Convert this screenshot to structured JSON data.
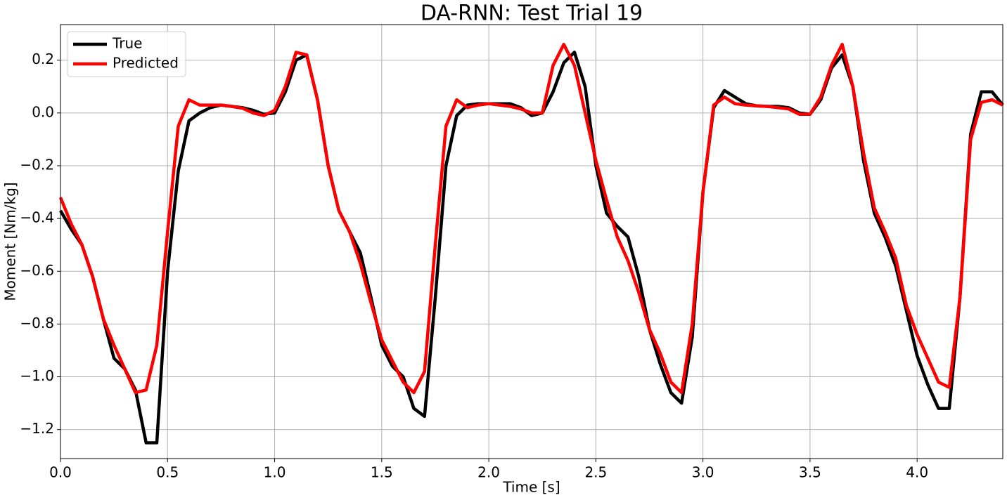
{
  "chart_data": {
    "type": "line",
    "title": "DA-RNN: Test Trial 19",
    "xlabel": "Time [s]",
    "ylabel": "Moment [Nm/kg]",
    "x": [
      0.0,
      0.05,
      0.1,
      0.15,
      0.2,
      0.25,
      0.3,
      0.35,
      0.4,
      0.45,
      0.5,
      0.55,
      0.6,
      0.65,
      0.7,
      0.75,
      0.8,
      0.85,
      0.9,
      0.95,
      1.0,
      1.05,
      1.1,
      1.15,
      1.2,
      1.25,
      1.3,
      1.35,
      1.4,
      1.45,
      1.5,
      1.55,
      1.6,
      1.65,
      1.7,
      1.75,
      1.8,
      1.85,
      1.9,
      1.95,
      2.0,
      2.05,
      2.1,
      2.15,
      2.2,
      2.25,
      2.3,
      2.35,
      2.4,
      2.45,
      2.5,
      2.55,
      2.6,
      2.65,
      2.7,
      2.75,
      2.8,
      2.85,
      2.9,
      2.95,
      3.0,
      3.05,
      3.1,
      3.15,
      3.2,
      3.25,
      3.3,
      3.35,
      3.4,
      3.45,
      3.5,
      3.55,
      3.6,
      3.65,
      3.7,
      3.75,
      3.8,
      3.85,
      3.9,
      3.95,
      4.0,
      4.05,
      4.1,
      4.15,
      4.2,
      4.25,
      4.3,
      4.35,
      4.4
    ],
    "series": [
      {
        "name": "True",
        "color": "#000000",
        "values": [
          -0.37,
          -0.44,
          -0.5,
          -0.62,
          -0.78,
          -0.93,
          -0.97,
          -1.05,
          -1.25,
          -1.25,
          -0.6,
          -0.22,
          -0.03,
          0.0,
          0.02,
          0.03,
          0.025,
          0.02,
          0.01,
          -0.005,
          0.0,
          0.08,
          0.2,
          0.22,
          0.05,
          -0.2,
          -0.37,
          -0.45,
          -0.53,
          -0.7,
          -0.88,
          -0.96,
          -1.0,
          -1.12,
          -1.15,
          -0.7,
          -0.2,
          -0.01,
          0.03,
          0.035,
          0.035,
          0.035,
          0.035,
          0.02,
          -0.01,
          0.0,
          0.08,
          0.19,
          0.23,
          0.1,
          -0.2,
          -0.38,
          -0.43,
          -0.47,
          -0.62,
          -0.82,
          -0.95,
          -1.06,
          -1.1,
          -0.85,
          -0.3,
          0.02,
          0.085,
          0.06,
          0.035,
          0.027,
          0.025,
          0.025,
          0.02,
          0.0,
          -0.005,
          0.05,
          0.17,
          0.22,
          0.1,
          -0.18,
          -0.38,
          -0.47,
          -0.58,
          -0.75,
          -0.92,
          -1.03,
          -1.12,
          -1.12,
          -0.7,
          -0.08,
          0.08,
          0.08,
          0.03
        ]
      },
      {
        "name": "Predicted",
        "color": "#ff0000",
        "values": [
          -0.32,
          -0.42,
          -0.5,
          -0.62,
          -0.78,
          -0.88,
          -0.97,
          -1.06,
          -1.05,
          -0.88,
          -0.45,
          -0.05,
          0.05,
          0.03,
          0.03,
          0.03,
          0.025,
          0.018,
          0.0,
          -0.01,
          0.01,
          0.1,
          0.23,
          0.22,
          0.05,
          -0.2,
          -0.37,
          -0.45,
          -0.57,
          -0.72,
          -0.86,
          -0.94,
          -1.02,
          -1.06,
          -0.98,
          -0.5,
          -0.05,
          0.05,
          0.02,
          0.03,
          0.035,
          0.03,
          0.025,
          0.015,
          0.0,
          0.0,
          0.18,
          0.26,
          0.18,
          0.0,
          -0.18,
          -0.33,
          -0.47,
          -0.56,
          -0.68,
          -0.82,
          -0.91,
          -1.02,
          -1.06,
          -0.8,
          -0.3,
          0.03,
          0.06,
          0.035,
          0.03,
          0.027,
          0.025,
          0.02,
          0.015,
          -0.005,
          -0.005,
          0.06,
          0.18,
          0.26,
          0.1,
          -0.15,
          -0.36,
          -0.45,
          -0.55,
          -0.73,
          -0.84,
          -0.93,
          -1.02,
          -1.04,
          -0.7,
          -0.1,
          0.04,
          0.05,
          0.03
        ]
      }
    ],
    "xlim": [
      0,
      4.4
    ],
    "ylim": [
      -1.31,
      0.335
    ],
    "xticks": [
      {
        "value": 0,
        "label": "0.0"
      },
      0.5,
      {
        "value": 1,
        "label": "1.0"
      },
      1.5,
      {
        "value": 2,
        "label": "2.0"
      },
      2.5,
      {
        "value": 3,
        "label": "3.0"
      },
      3.5,
      {
        "value": 4,
        "label": "4.0"
      }
    ],
    "yticks": [
      {
        "value": -1.2,
        "label": "−1.2"
      },
      {
        "value": -1.0,
        "label": "−1.0"
      },
      {
        "value": -0.8,
        "label": "−0.8"
      },
      {
        "value": -0.6,
        "label": "−0.6"
      },
      {
        "value": -0.4,
        "label": "−0.4"
      },
      {
        "value": -0.2,
        "label": "−0.2"
      },
      {
        "value": 0,
        "label": "0.0"
      },
      0.2
    ],
    "grid": true,
    "legend": "upper-left"
  }
}
